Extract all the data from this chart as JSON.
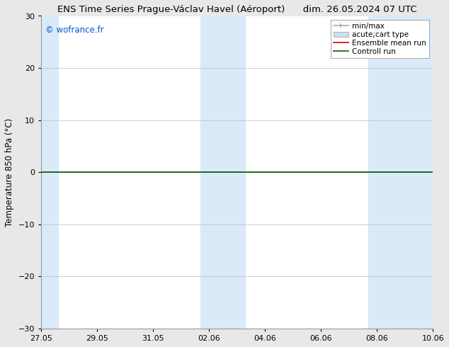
{
  "title": "ENS Time Series Prague-Václav Havel (Aéroport)      dim. 26.05.2024 07 UTC",
  "ylabel": "Temperature 850 hPa (°C)",
  "ylim": [
    -30,
    30
  ],
  "yticks": [
    -30,
    -20,
    -10,
    0,
    10,
    20,
    30
  ],
  "x_tick_labels": [
    "27.05",
    "29.05",
    "31.05",
    "02.06",
    "04.06",
    "06.06",
    "08.06",
    "10.06"
  ],
  "x_tick_positions": [
    0,
    2,
    4,
    6,
    8,
    10,
    12,
    14
  ],
  "xlim": [
    0,
    14
  ],
  "bg_color": "#e8e8e8",
  "plot_bg_color": "#ffffff",
  "shaded_bands": [
    {
      "xstart": 0.0,
      "xend": 0.6,
      "color": "#daeaf8"
    },
    {
      "xstart": 5.7,
      "xend": 7.3,
      "color": "#daeaf8"
    },
    {
      "xstart": 11.7,
      "xend": 14.0,
      "color": "#daeaf8"
    }
  ],
  "zero_line_y": 0,
  "zero_line_color": "#005500",
  "zero_line_lw": 1.2,
  "watermark_text": "© wofrance.fr",
  "watermark_color": "#0055cc",
  "watermark_fontsize": 8.5,
  "legend_entries": [
    {
      "label": "min/max",
      "color": "#aaaaaa",
      "lw": 1.2,
      "style": "line_with_caps"
    },
    {
      "label": "acute;cart type",
      "color": "#cce0f0",
      "lw": 8,
      "style": "thick"
    },
    {
      "label": "Ensemble mean run",
      "color": "#cc0000",
      "lw": 1.2,
      "style": "line"
    },
    {
      "label": "Controll run",
      "color": "#006600",
      "lw": 1.2,
      "style": "line"
    }
  ],
  "grid_color": "#bbbbbb",
  "grid_lw": 0.5,
  "title_fontsize": 9.5,
  "tick_fontsize": 8,
  "ylabel_fontsize": 8.5,
  "legend_fontsize": 7.5
}
